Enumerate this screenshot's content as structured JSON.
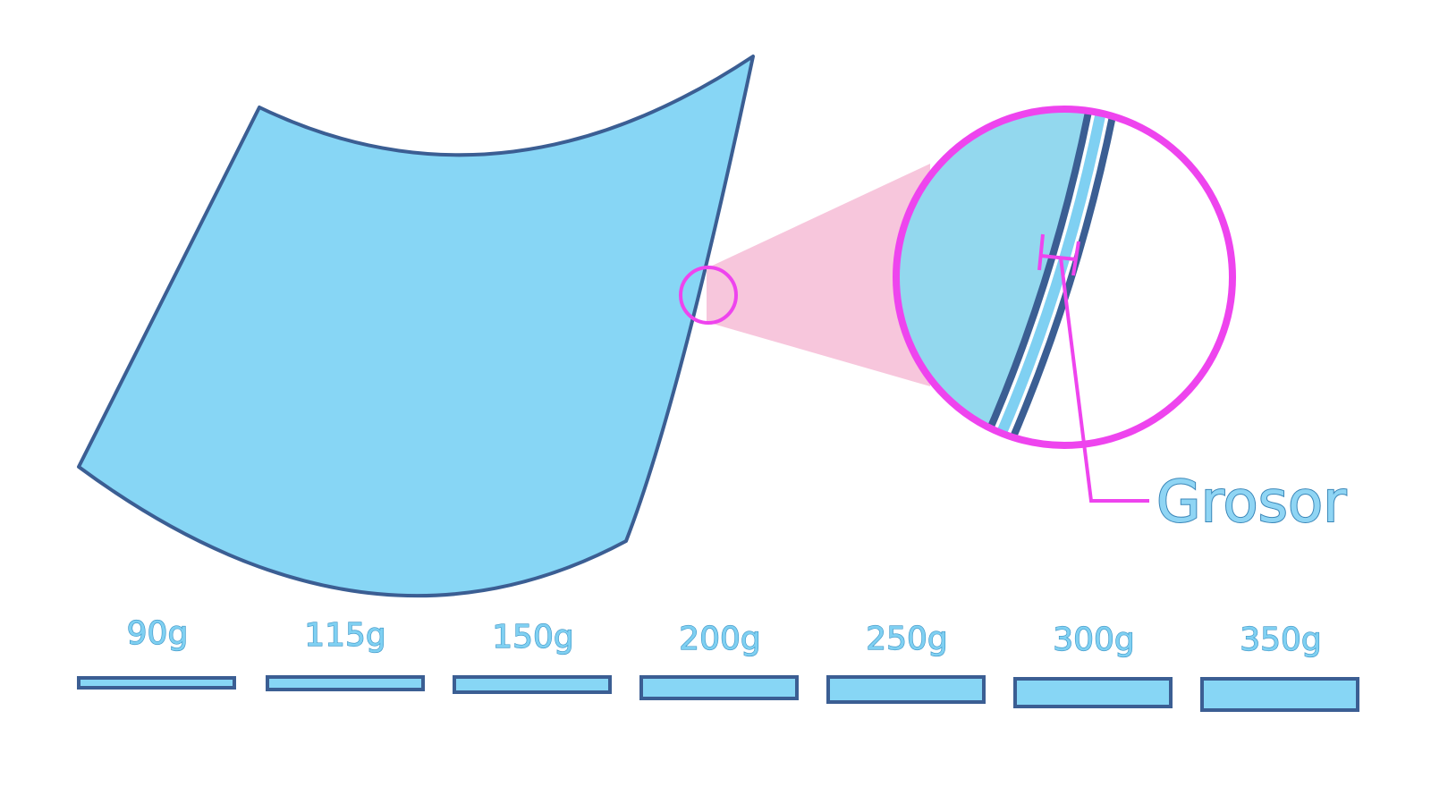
{
  "callout": {
    "label": "Grosor"
  },
  "paper_weights": [
    {
      "label": "90g",
      "relative_thickness": 1
    },
    {
      "label": "115g",
      "relative_thickness": 1.25
    },
    {
      "label": "150g",
      "relative_thickness": 1.55
    },
    {
      "label": "200g",
      "relative_thickness": 2.2
    },
    {
      "label": "250g",
      "relative_thickness": 2.55
    },
    {
      "label": "300g",
      "relative_thickness": 2.9
    },
    {
      "label": "350g",
      "relative_thickness": 3.3
    }
  ],
  "colors": {
    "paper_fill": "#87d6f5",
    "paper_outline": "#3b5e93",
    "magnifier": "#ee44ee",
    "zoom_beam": "#f7c6dc",
    "zoom_fill": "#93d8ee"
  }
}
